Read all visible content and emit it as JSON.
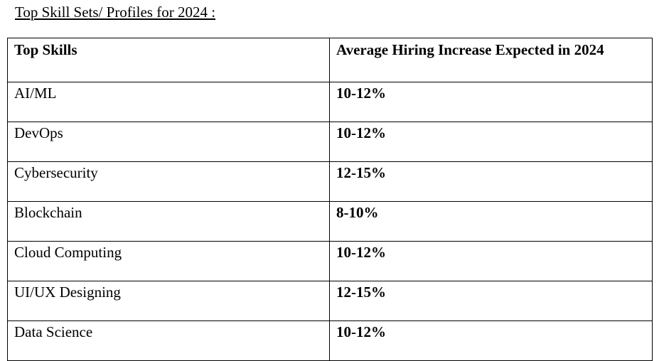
{
  "document": {
    "title": "Top Skill Sets/ Profiles for 2024 :"
  },
  "table": {
    "headers": {
      "skill": "Top Skills",
      "rate": "Average Hiring  Increase Expected in 2024"
    },
    "rows": [
      {
        "skill": "AI/ML",
        "rate": "10-12%"
      },
      {
        "skill": "DevOps",
        "rate": "10-12%"
      },
      {
        "skill": "Cybersecurity",
        "rate": "12-15%"
      },
      {
        "skill": "Blockchain",
        "rate": "8-10%"
      },
      {
        "skill": "Cloud Computing",
        "rate": "10-12%"
      },
      {
        "skill": "UI/UX Designing",
        "rate": "12-15%"
      },
      {
        "skill": "Data Science",
        "rate": "10-12%"
      }
    ]
  }
}
